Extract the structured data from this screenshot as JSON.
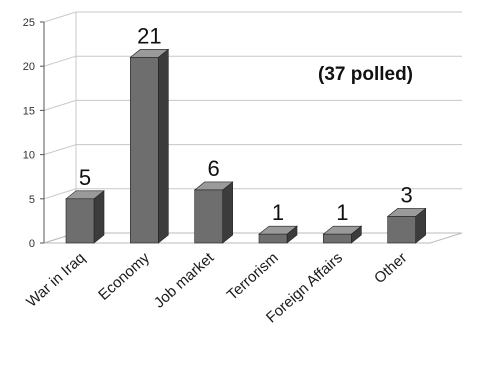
{
  "chart_data": {
    "type": "bar",
    "categories": [
      "War in Iraq",
      "Economy",
      "Job market",
      "Terrorism",
      "Foreign Affairs",
      "Other"
    ],
    "values": [
      5,
      21,
      6,
      1,
      1,
      3
    ],
    "data_labels": [
      "5",
      "21",
      "6",
      "1",
      "1",
      "3"
    ],
    "annotation": "(37 polled)",
    "yticks": [
      "0",
      "5",
      "10",
      "15",
      "20",
      "25"
    ],
    "ylim": [
      0,
      25
    ],
    "grid": true,
    "legend": "none",
    "style": "3d",
    "colors": {
      "bar_front": "#6e6e6e",
      "bar_side": "#3c3c3c",
      "bar_top": "#9a9a9a",
      "grid": "#c8c8c8"
    }
  }
}
